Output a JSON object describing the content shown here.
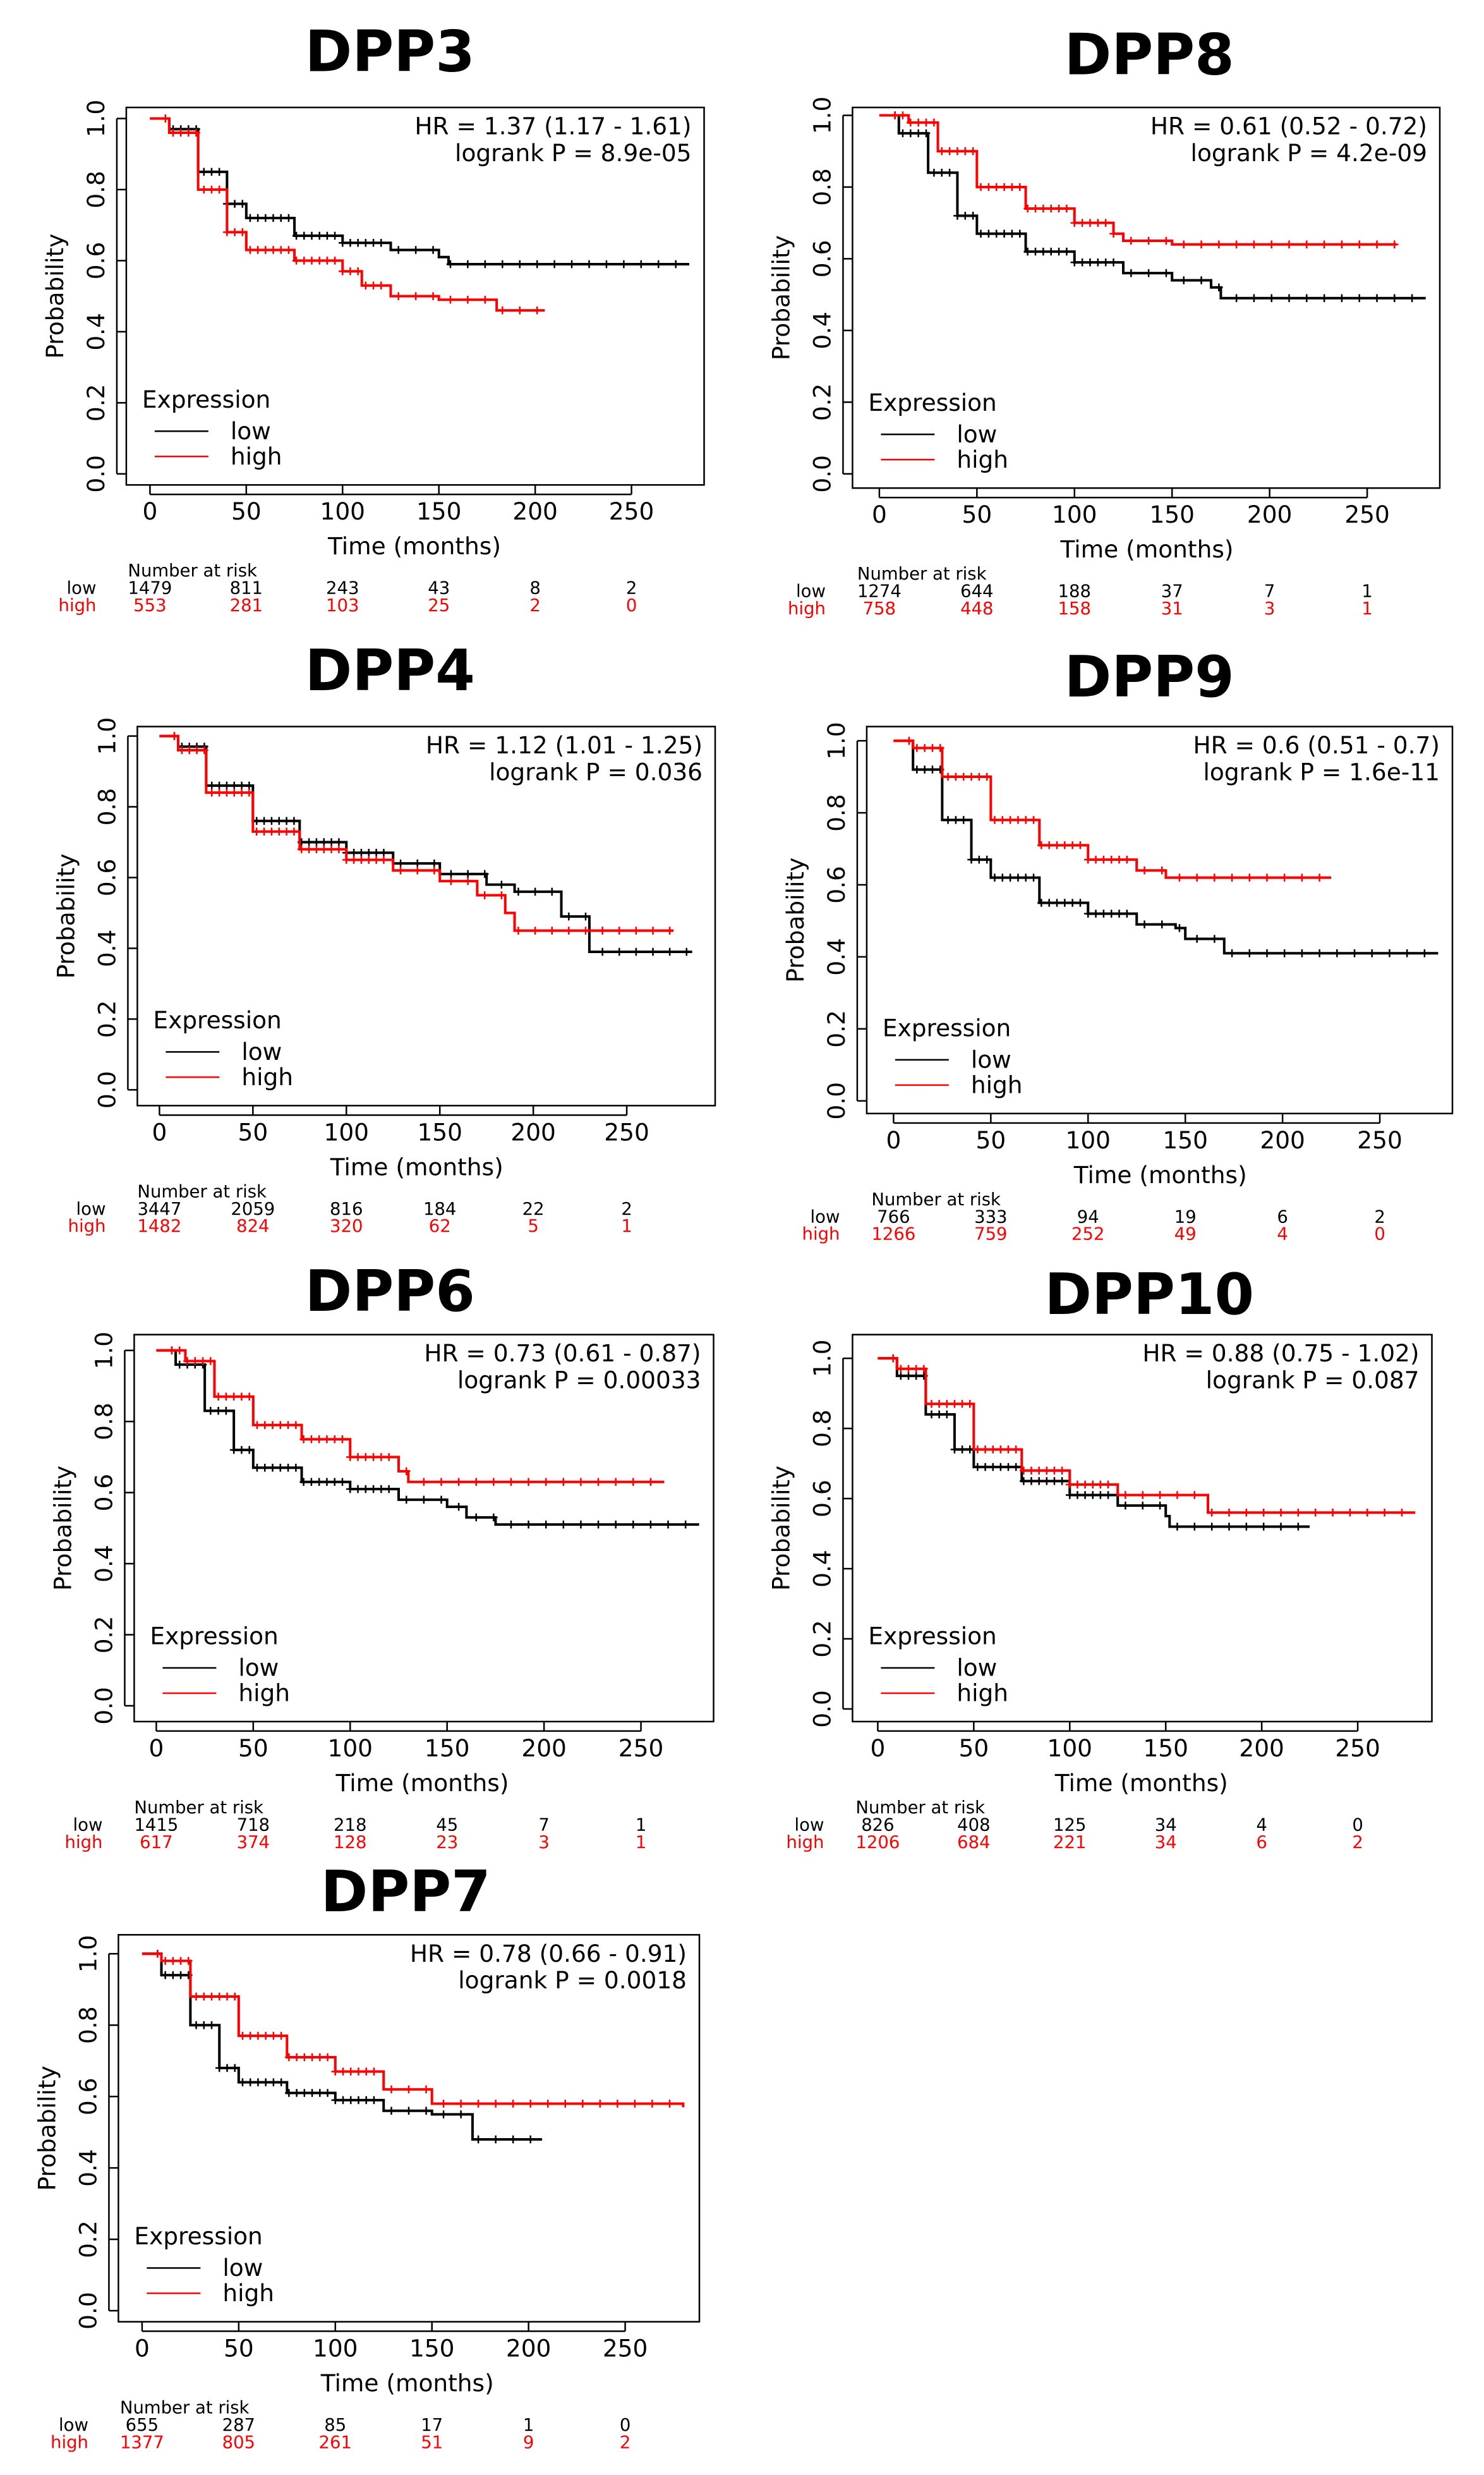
{
  "colors": {
    "low": "#000000",
    "high": "#ff0000"
  },
  "chart_data": [
    {
      "type": "line",
      "title": "DPP3",
      "xlabel": "Time (months)",
      "ylabel": "Probability",
      "xticks": [
        0,
        50,
        100,
        150,
        200,
        250
      ],
      "yticks": [
        "0.0",
        "0.2",
        "0.4",
        "0.6",
        "0.8",
        "1.0"
      ],
      "ylim": [
        0,
        1
      ],
      "hr_text": "HR = 1.37 (1.17 - 1.61)",
      "p_text": "logrank P = 8.9e-05",
      "legend": {
        "title": "Expression",
        "entries": [
          "low",
          "high"
        ],
        "position": "bottom-left"
      },
      "risk": {
        "header": "Number at risk",
        "low_label": "low",
        "high_label": "high",
        "low": [
          "1479",
          "811",
          "243",
          "43",
          "8",
          "2"
        ],
        "high": [
          "553",
          "281",
          "103",
          "25",
          "2",
          "0"
        ]
      },
      "series": [
        {
          "name": "low",
          "points": [
            [
              0,
              1
            ],
            [
              10,
              0.97
            ],
            [
              25,
              0.85
            ],
            [
              40,
              0.76
            ],
            [
              50,
              0.72
            ],
            [
              75,
              0.67
            ],
            [
              100,
              0.65
            ],
            [
              125,
              0.63
            ],
            [
              150,
              0.61
            ],
            [
              155,
              0.59
            ],
            [
              280,
              0.59
            ]
          ]
        },
        {
          "name": "high",
          "points": [
            [
              0,
              1
            ],
            [
              10,
              0.96
            ],
            [
              25,
              0.8
            ],
            [
              40,
              0.68
            ],
            [
              50,
              0.63
            ],
            [
              75,
              0.6
            ],
            [
              100,
              0.57
            ],
            [
              110,
              0.53
            ],
            [
              125,
              0.5
            ],
            [
              150,
              0.49
            ],
            [
              175,
              0.49
            ],
            [
              180,
              0.46
            ],
            [
              205,
              0.46
            ]
          ]
        }
      ]
    },
    {
      "type": "line",
      "title": "DPP8",
      "xlabel": "Time (months)",
      "ylabel": "Probability",
      "xticks": [
        0,
        50,
        100,
        150,
        200,
        250
      ],
      "yticks": [
        "0.0",
        "0.2",
        "0.4",
        "0.6",
        "0.8",
        "1.0"
      ],
      "ylim": [
        0,
        1
      ],
      "hr_text": "HR = 0.61 (0.52 - 0.72)",
      "p_text": "logrank P = 4.2e-09",
      "legend": {
        "title": "Expression",
        "entries": [
          "low",
          "high"
        ],
        "position": "bottom-left"
      },
      "risk": {
        "header": "Number at risk",
        "low_label": "low",
        "high_label": "high",
        "low": [
          "1274",
          "644",
          "188",
          "37",
          "7",
          "1"
        ],
        "high": [
          "758",
          "448",
          "158",
          "31",
          "3",
          "1"
        ]
      },
      "series": [
        {
          "name": "low",
          "points": [
            [
              0,
              1
            ],
            [
              10,
              0.95
            ],
            [
              25,
              0.84
            ],
            [
              40,
              0.72
            ],
            [
              50,
              0.67
            ],
            [
              75,
              0.62
            ],
            [
              100,
              0.59
            ],
            [
              125,
              0.56
            ],
            [
              150,
              0.54
            ],
            [
              170,
              0.52
            ],
            [
              175,
              0.49
            ],
            [
              280,
              0.49
            ]
          ]
        },
        {
          "name": "high",
          "points": [
            [
              0,
              1
            ],
            [
              15,
              0.98
            ],
            [
              30,
              0.9
            ],
            [
              50,
              0.8
            ],
            [
              75,
              0.74
            ],
            [
              100,
              0.7
            ],
            [
              120,
              0.67
            ],
            [
              125,
              0.65
            ],
            [
              150,
              0.64
            ],
            [
              265,
              0.64
            ]
          ]
        }
      ]
    },
    {
      "type": "line",
      "title": "DPP4",
      "xlabel": "Time (months)",
      "ylabel": "Probability",
      "xticks": [
        0,
        50,
        100,
        150,
        200,
        250
      ],
      "yticks": [
        "0.0",
        "0.2",
        "0.4",
        "0.6",
        "0.8",
        "1.0"
      ],
      "ylim": [
        0,
        1
      ],
      "hr_text": "HR = 1.12 (1.01 - 1.25)",
      "p_text": "logrank P = 0.036",
      "legend": {
        "title": "Expression",
        "entries": [
          "low",
          "high"
        ],
        "position": "bottom-left"
      },
      "risk": {
        "header": "Number at risk",
        "low_label": "low",
        "high_label": "high",
        "low": [
          "3447",
          "2059",
          "816",
          "184",
          "22",
          "2"
        ],
        "high": [
          "1482",
          "824",
          "320",
          "62",
          "5",
          "1"
        ]
      },
      "series": [
        {
          "name": "low",
          "points": [
            [
              0,
              1
            ],
            [
              10,
              0.97
            ],
            [
              25,
              0.86
            ],
            [
              50,
              0.76
            ],
            [
              75,
              0.7
            ],
            [
              100,
              0.67
            ],
            [
              125,
              0.64
            ],
            [
              150,
              0.61
            ],
            [
              175,
              0.58
            ],
            [
              190,
              0.56
            ],
            [
              215,
              0.56
            ],
            [
              215,
              0.49
            ],
            [
              230,
              0.49
            ],
            [
              230,
              0.39
            ],
            [
              285,
              0.39
            ]
          ]
        },
        {
          "name": "high",
          "points": [
            [
              0,
              1
            ],
            [
              10,
              0.96
            ],
            [
              25,
              0.84
            ],
            [
              50,
              0.73
            ],
            [
              75,
              0.68
            ],
            [
              100,
              0.65
            ],
            [
              125,
              0.62
            ],
            [
              150,
              0.59
            ],
            [
              170,
              0.55
            ],
            [
              185,
              0.5
            ],
            [
              190,
              0.45
            ],
            [
              275,
              0.45
            ]
          ]
        }
      ]
    },
    {
      "type": "line",
      "title": "DPP9",
      "xlabel": "Time (months)",
      "ylabel": "Probability",
      "xticks": [
        0,
        50,
        100,
        150,
        200,
        250
      ],
      "yticks": [
        "0.0",
        "0.2",
        "0.4",
        "0.6",
        "0.8",
        "1.0"
      ],
      "ylim": [
        0,
        1
      ],
      "hr_text": "HR = 0.6 (0.51 - 0.7)",
      "p_text": "logrank P = 1.6e-11",
      "legend": {
        "title": "Expression",
        "entries": [
          "low",
          "high"
        ],
        "position": "bottom-left"
      },
      "risk": {
        "header": "Number at risk",
        "low_label": "low",
        "high_label": "high",
        "low": [
          "766",
          "333",
          "94",
          "19",
          "6",
          "2"
        ],
        "high": [
          "1266",
          "759",
          "252",
          "49",
          "4",
          "0"
        ]
      },
      "series": [
        {
          "name": "low",
          "points": [
            [
              0,
              1
            ],
            [
              10,
              0.92
            ],
            [
              25,
              0.78
            ],
            [
              40,
              0.67
            ],
            [
              50,
              0.62
            ],
            [
              75,
              0.55
            ],
            [
              100,
              0.52
            ],
            [
              125,
              0.49
            ],
            [
              145,
              0.48
            ],
            [
              150,
              0.45
            ],
            [
              170,
              0.41
            ],
            [
              280,
              0.41
            ]
          ]
        },
        {
          "name": "high",
          "points": [
            [
              0,
              1
            ],
            [
              10,
              0.98
            ],
            [
              25,
              0.9
            ],
            [
              50,
              0.78
            ],
            [
              75,
              0.71
            ],
            [
              100,
              0.67
            ],
            [
              125,
              0.64
            ],
            [
              140,
              0.62
            ],
            [
              225,
              0.62
            ]
          ]
        }
      ]
    },
    {
      "type": "line",
      "title": "DPP6",
      "xlabel": "Time (months)",
      "ylabel": "Probability",
      "xticks": [
        0,
        50,
        100,
        150,
        200,
        250
      ],
      "yticks": [
        "0.0",
        "0.2",
        "0.4",
        "0.6",
        "0.8",
        "1.0"
      ],
      "ylim": [
        0,
        1
      ],
      "hr_text": "HR = 0.73 (0.61 - 0.87)",
      "p_text": "logrank P = 0.00033",
      "legend": {
        "title": "Expression",
        "entries": [
          "low",
          "high"
        ],
        "position": "bottom-left"
      },
      "risk": {
        "header": "Number at risk",
        "low_label": "low",
        "high_label": "high",
        "low": [
          "1415",
          "718",
          "218",
          "45",
          "7",
          "1"
        ],
        "high": [
          "617",
          "374",
          "128",
          "23",
          "3",
          "1"
        ]
      },
      "series": [
        {
          "name": "low",
          "points": [
            [
              0,
              1
            ],
            [
              10,
              0.96
            ],
            [
              25,
              0.83
            ],
            [
              40,
              0.72
            ],
            [
              50,
              0.67
            ],
            [
              75,
              0.63
            ],
            [
              100,
              0.61
            ],
            [
              125,
              0.58
            ],
            [
              150,
              0.56
            ],
            [
              160,
              0.53
            ],
            [
              175,
              0.51
            ],
            [
              280,
              0.51
            ]
          ]
        },
        {
          "name": "high",
          "points": [
            [
              0,
              1
            ],
            [
              15,
              0.97
            ],
            [
              30,
              0.87
            ],
            [
              50,
              0.79
            ],
            [
              75,
              0.75
            ],
            [
              100,
              0.7
            ],
            [
              125,
              0.66
            ],
            [
              130,
              0.63
            ],
            [
              262,
              0.63
            ]
          ]
        }
      ]
    },
    {
      "type": "line",
      "title": "DPP10",
      "xlabel": "Time (months)",
      "ylabel": "Probability",
      "xticks": [
        0,
        50,
        100,
        150,
        200,
        250
      ],
      "yticks": [
        "0.0",
        "0.2",
        "0.4",
        "0.6",
        "0.8",
        "1.0"
      ],
      "ylim": [
        0,
        1
      ],
      "hr_text": "HR = 0.88 (0.75 - 1.02)",
      "p_text": "logrank P = 0.087",
      "legend": {
        "title": "Expression",
        "entries": [
          "low",
          "high"
        ],
        "position": "bottom-left"
      },
      "risk": {
        "header": "Number at risk",
        "low_label": "low",
        "high_label": "high",
        "low": [
          "826",
          "408",
          "125",
          "34",
          "4",
          "0"
        ],
        "high": [
          "1206",
          "684",
          "221",
          "34",
          "6",
          "2"
        ]
      },
      "series": [
        {
          "name": "low",
          "points": [
            [
              0,
              1
            ],
            [
              10,
              0.95
            ],
            [
              25,
              0.84
            ],
            [
              40,
              0.74
            ],
            [
              50,
              0.69
            ],
            [
              75,
              0.65
            ],
            [
              100,
              0.61
            ],
            [
              125,
              0.58
            ],
            [
              150,
              0.55
            ],
            [
              152,
              0.52
            ],
            [
              225,
              0.52
            ]
          ]
        },
        {
          "name": "high",
          "points": [
            [
              0,
              1
            ],
            [
              10,
              0.97
            ],
            [
              25,
              0.87
            ],
            [
              50,
              0.74
            ],
            [
              75,
              0.68
            ],
            [
              100,
              0.64
            ],
            [
              125,
              0.61
            ],
            [
              170,
              0.61
            ],
            [
              172,
              0.56
            ],
            [
              280,
              0.56
            ]
          ]
        }
      ]
    },
    {
      "type": "line",
      "title": "DPP7",
      "xlabel": "Time (months)",
      "ylabel": "Probability",
      "xticks": [
        0,
        50,
        100,
        150,
        200,
        250
      ],
      "yticks": [
        "0.0",
        "0.2",
        "0.4",
        "0.6",
        "0.8",
        "1.0"
      ],
      "ylim": [
        0,
        1
      ],
      "hr_text": "HR = 0.78 (0.66 - 0.91)",
      "p_text": "logrank P = 0.0018",
      "legend": {
        "title": "Expression",
        "entries": [
          "low",
          "high"
        ],
        "position": "bottom-left"
      },
      "risk": {
        "header": "Number at risk",
        "low_label": "low",
        "high_label": "high",
        "low": [
          "655",
          "287",
          "85",
          "17",
          "1",
          "0"
        ],
        "high": [
          "1377",
          "805",
          "261",
          "51",
          "9",
          "2"
        ]
      },
      "series": [
        {
          "name": "low",
          "points": [
            [
              0,
              1
            ],
            [
              10,
              0.94
            ],
            [
              25,
              0.8
            ],
            [
              40,
              0.68
            ],
            [
              50,
              0.64
            ],
            [
              75,
              0.61
            ],
            [
              100,
              0.59
            ],
            [
              125,
              0.56
            ],
            [
              150,
              0.55
            ],
            [
              170,
              0.55
            ],
            [
              171,
              0.48
            ],
            [
              207,
              0.48
            ]
          ]
        },
        {
          "name": "high",
          "points": [
            [
              0,
              1
            ],
            [
              10,
              0.98
            ],
            [
              25,
              0.88
            ],
            [
              50,
              0.77
            ],
            [
              75,
              0.71
            ],
            [
              100,
              0.67
            ],
            [
              125,
              0.62
            ],
            [
              150,
              0.58
            ],
            [
              280,
              0.57
            ]
          ]
        }
      ]
    }
  ]
}
